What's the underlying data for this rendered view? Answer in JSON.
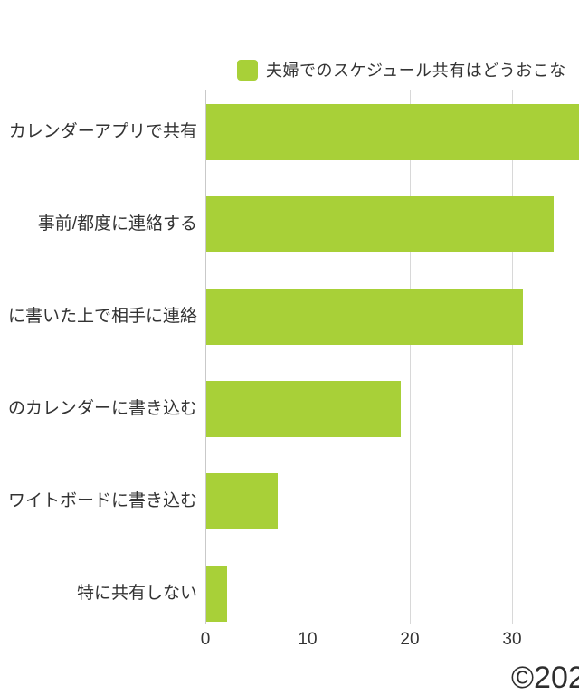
{
  "legend": {
    "label": "夫婦でのスケジュール共有はどうおこな",
    "swatch_color": "#a8d038"
  },
  "footer": {
    "copyright": "©202"
  },
  "chart_data": {
    "type": "bar",
    "orientation": "horizontal",
    "title": "夫婦でのスケジュール共有はどうおこな…（凡例・右端で切れている）",
    "categories": [
      "カレンダーアプリで共有",
      "事前/都度に連絡する",
      "に書いた上で相手に連絡",
      "のカレンダーに書き込む",
      "ワイトボードに書き込む",
      "特に共有しない"
    ],
    "values": [
      37,
      34,
      31,
      19,
      7,
      2
    ],
    "xlabel": "",
    "ylabel": "",
    "xticks": [
      0,
      10,
      20,
      30
    ],
    "xlim": [
      0,
      36.5
    ],
    "bar_color": "#a8d038",
    "grid": "vertical",
    "legend_position": "top"
  }
}
